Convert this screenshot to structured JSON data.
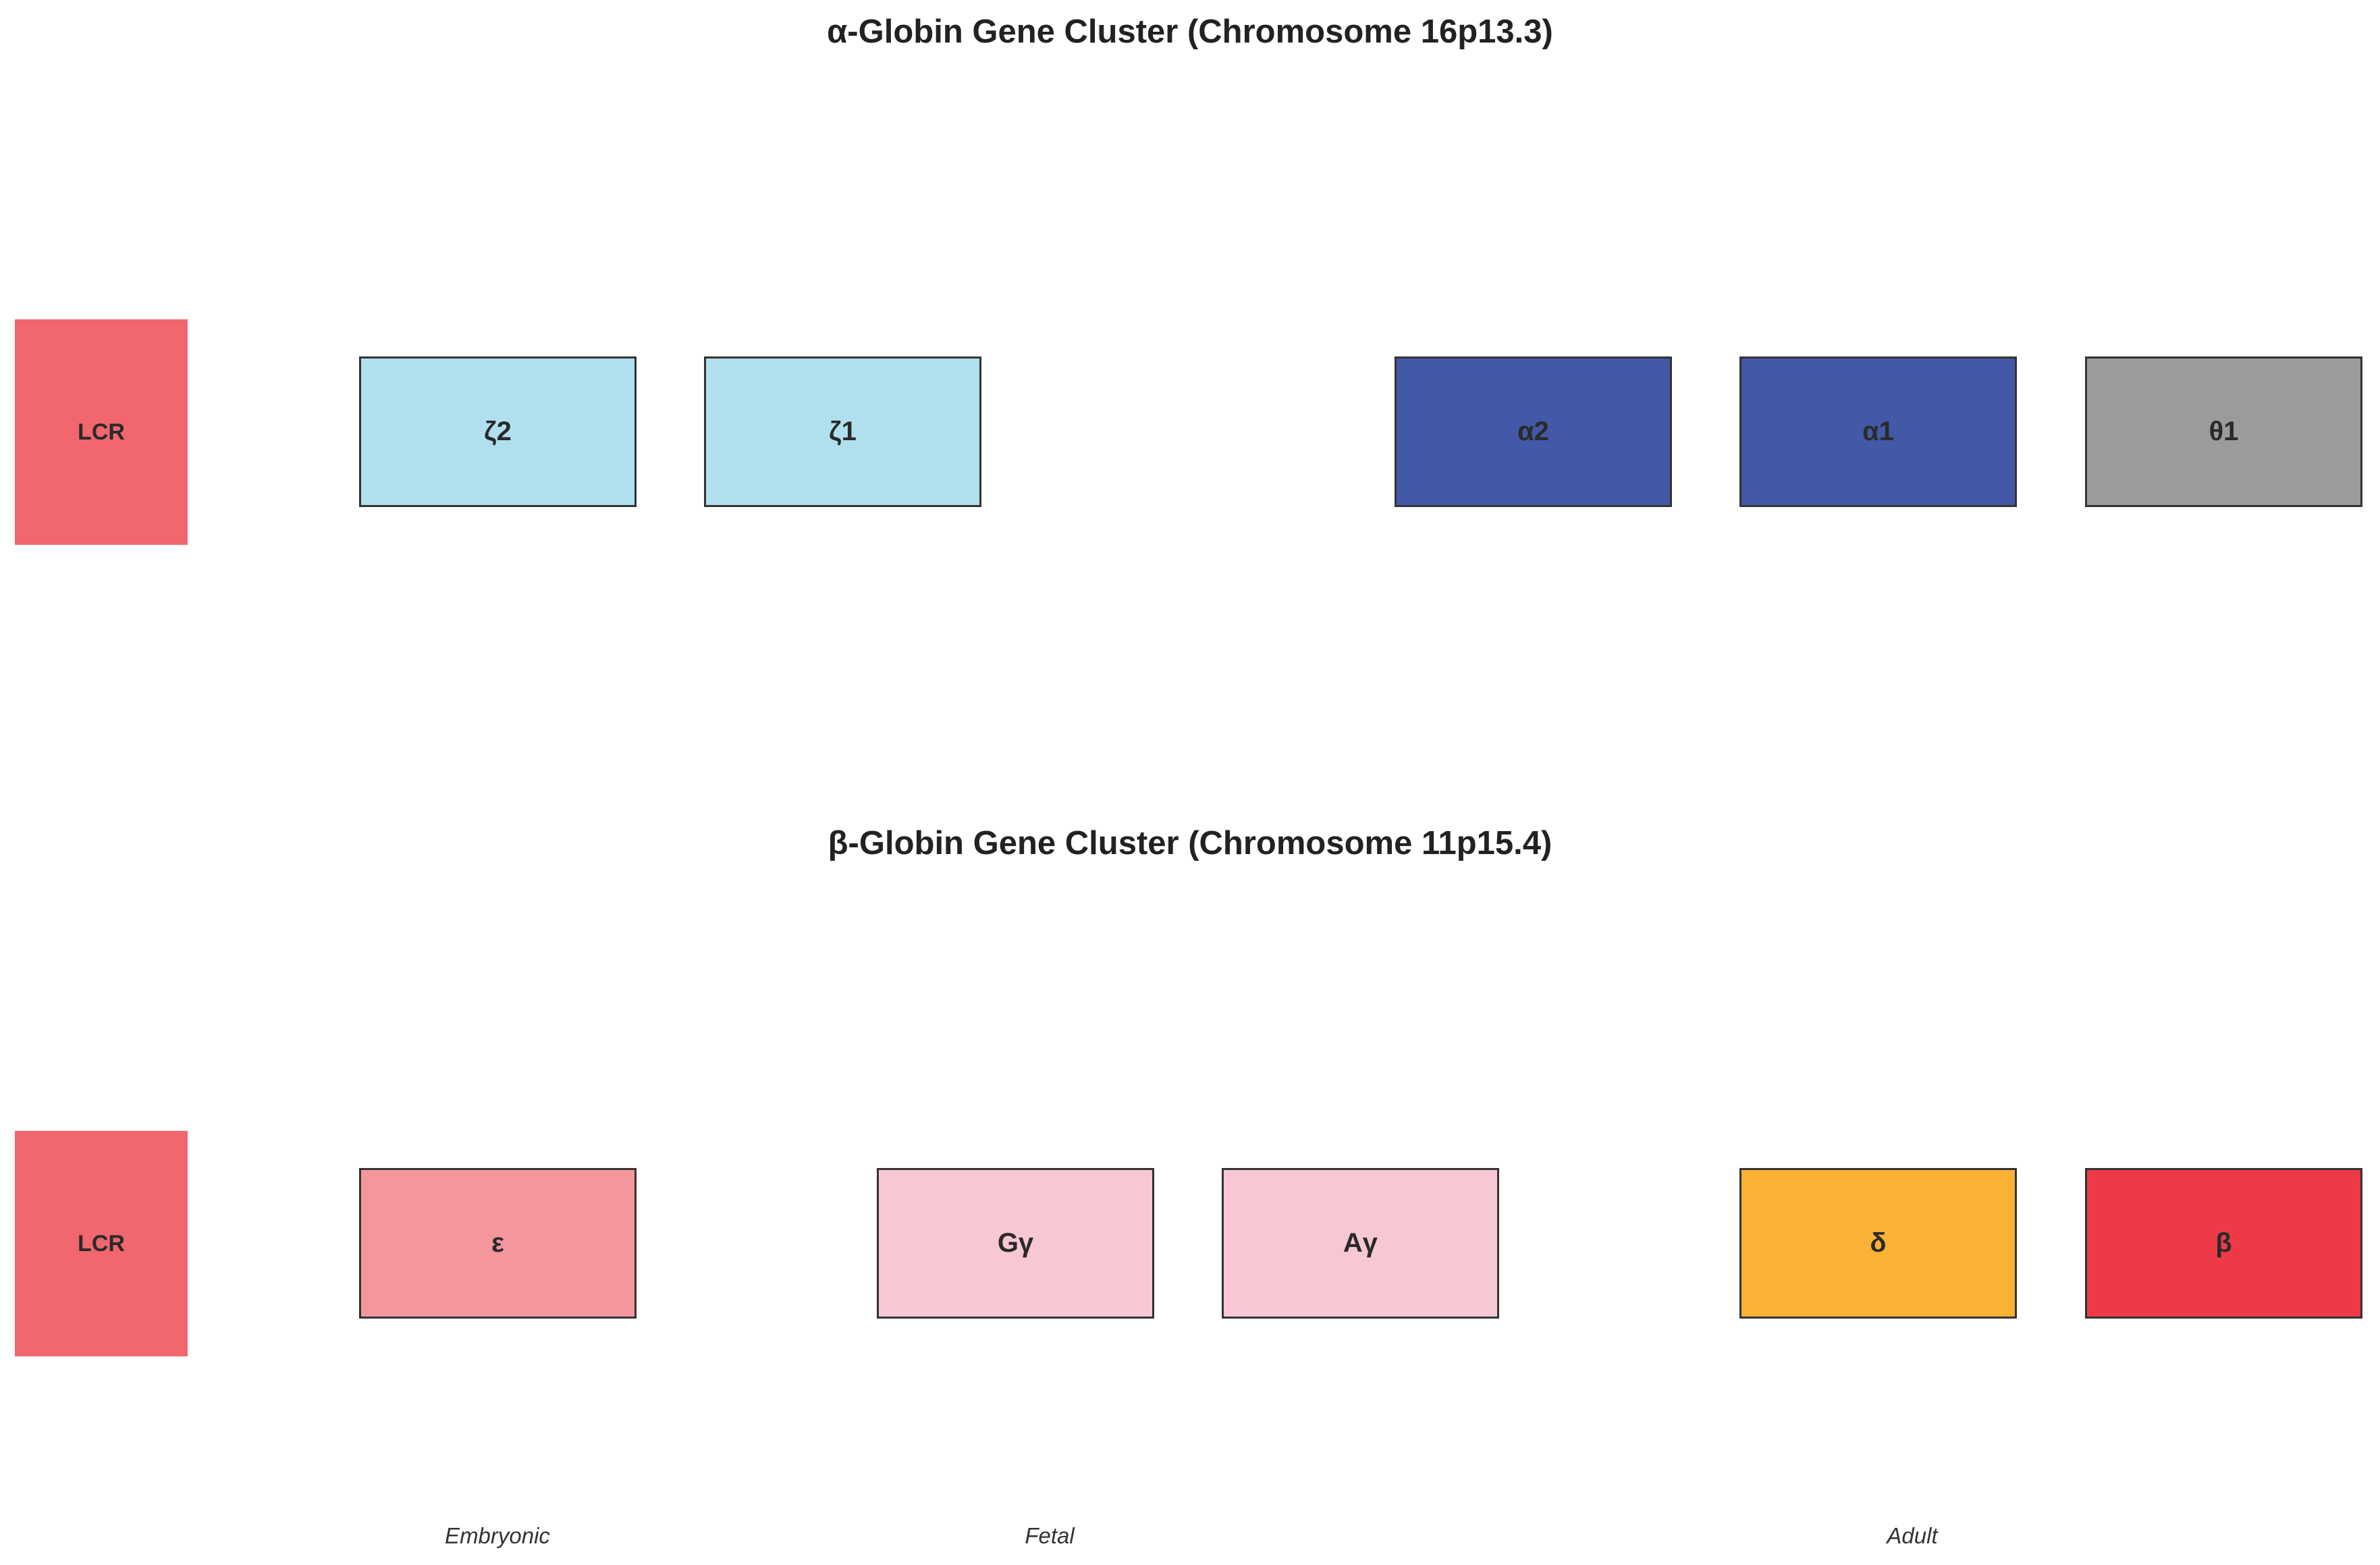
{
  "alpha_cluster": {
    "title": "α-Globin Gene Cluster (Chromosome 16p13.3)",
    "lcr": {
      "label": "LCR",
      "color": "#f2666e"
    },
    "genes": [
      {
        "label": "ζ2",
        "color": "#b0e0ed"
      },
      {
        "label": "ζ1",
        "color": "#b0e0ed"
      },
      {
        "label": "α2",
        "color": "#4358a7"
      },
      {
        "label": "α1",
        "color": "#4358a7"
      },
      {
        "label": "θ1",
        "color": "#9a9b9b"
      }
    ]
  },
  "beta_cluster": {
    "title": "β-Globin Gene Cluster (Chromosome 11p15.4)",
    "lcr": {
      "label": "LCR",
      "color": "#f2666e"
    },
    "genes": [
      {
        "label": "ε",
        "color": "#f4979c"
      },
      {
        "label": "Gγ",
        "color": "#f8c7d4"
      },
      {
        "label": "Aγ",
        "color": "#f8c7d4"
      },
      {
        "label": "δ",
        "color": "#fbb133"
      },
      {
        "label": "β",
        "color": "#ee3a47"
      }
    ]
  },
  "stages": {
    "embryonic": "Embryonic",
    "fetal": "Fetal",
    "adult": "Adult"
  }
}
